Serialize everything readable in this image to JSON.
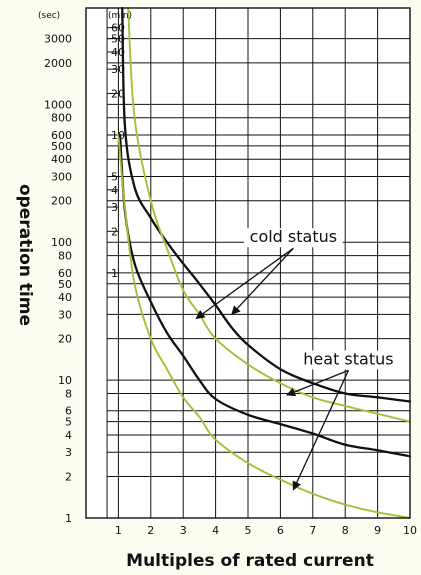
{
  "chart_data": {
    "type": "line",
    "title": "",
    "xlabel": "Multiples of rated current",
    "ylabel": "operation time",
    "yscale": "log",
    "ylim_sec": [
      1,
      5000
    ],
    "xlim": [
      0,
      10
    ],
    "x_ticks": [
      "1",
      "2",
      "3",
      "4",
      "5",
      "6",
      "7",
      "8",
      "9",
      "10"
    ],
    "y_unit_sec": "(sec)",
    "y_unit_min": "(min)",
    "y_ticks_sec": [
      {
        "label": "3000",
        "v": 3000
      },
      {
        "label": "2000",
        "v": 2000
      },
      {
        "label": "1000",
        "v": 1000
      },
      {
        "label": "800",
        "v": 800
      },
      {
        "label": "600",
        "v": 600
      },
      {
        "label": "500",
        "v": 500
      },
      {
        "label": "400",
        "v": 400
      },
      {
        "label": "300",
        "v": 300
      },
      {
        "label": "200",
        "v": 200
      },
      {
        "label": "100",
        "v": 100
      },
      {
        "label": "80",
        "v": 80
      },
      {
        "label": "60",
        "v": 60
      },
      {
        "label": "50",
        "v": 50
      },
      {
        "label": "40",
        "v": 40
      },
      {
        "label": "30",
        "v": 30
      },
      {
        "label": "20",
        "v": 20
      },
      {
        "label": "10",
        "v": 10
      },
      {
        "label": "8",
        "v": 8
      },
      {
        "label": "6",
        "v": 6
      },
      {
        "label": "5",
        "v": 5
      },
      {
        "label": "4",
        "v": 4
      },
      {
        "label": "3",
        "v": 3
      },
      {
        "label": "2",
        "v": 2
      },
      {
        "label": "1",
        "v": 1
      }
    ],
    "y_ticks_min": [
      {
        "label": "60",
        "v": 3600
      },
      {
        "label": "50",
        "v": 3000
      },
      {
        "label": "40",
        "v": 2400
      },
      {
        "label": "30",
        "v": 1800
      },
      {
        "label": "20",
        "v": 1200
      },
      {
        "label": "10",
        "v": 600
      },
      {
        "label": "5",
        "v": 300
      },
      {
        "label": "4",
        "v": 240
      },
      {
        "label": "3",
        "v": 180
      },
      {
        "label": "2",
        "v": 120
      },
      {
        "label": "1",
        "v": 60
      }
    ],
    "series": [
      {
        "group": "cold status",
        "color": "#111111",
        "style": "solid",
        "points": [
          [
            1.12,
            5000
          ],
          [
            1.2,
            700
          ],
          [
            1.5,
            250
          ],
          [
            2,
            150
          ],
          [
            2.5,
            100
          ],
          [
            3,
            70
          ],
          [
            3.5,
            50
          ],
          [
            4,
            35
          ],
          [
            4.5,
            24
          ],
          [
            5,
            18
          ],
          [
            6,
            12
          ],
          [
            7,
            9.5
          ],
          [
            8,
            8
          ],
          [
            9,
            7.5
          ],
          [
            10,
            7
          ]
        ]
      },
      {
        "group": "cold status",
        "color": "#111111",
        "style": "solid",
        "points": [
          [
            1.05,
            600
          ],
          [
            1.2,
            170
          ],
          [
            1.5,
            70
          ],
          [
            2,
            37
          ],
          [
            2.5,
            22
          ],
          [
            3,
            15
          ],
          [
            3.5,
            10
          ],
          [
            4,
            7.3
          ],
          [
            5,
            5.6
          ],
          [
            6,
            4.8
          ],
          [
            7,
            4.1
          ],
          [
            8,
            3.4
          ],
          [
            9,
            3.1
          ],
          [
            10,
            2.8
          ]
        ]
      },
      {
        "group": "heat status",
        "color": "#9dc23a",
        "style": "dotted",
        "points": [
          [
            1.3,
            5000
          ],
          [
            1.5,
            800
          ],
          [
            2,
            200
          ],
          [
            2.5,
            90
          ],
          [
            3,
            45
          ],
          [
            3.5,
            30
          ],
          [
            4,
            20
          ],
          [
            5,
            13
          ],
          [
            6,
            9.5
          ],
          [
            7,
            7.5
          ],
          [
            8,
            6.5
          ],
          [
            9,
            5.7
          ],
          [
            10,
            5
          ]
        ]
      },
      {
        "group": "heat status",
        "color": "#9dc23a",
        "style": "dotted",
        "points": [
          [
            1,
            600
          ],
          [
            1.2,
            180
          ],
          [
            1.5,
            50
          ],
          [
            2,
            20
          ],
          [
            2.5,
            12
          ],
          [
            3,
            7.5
          ],
          [
            3.5,
            5.4
          ],
          [
            4,
            3.7
          ],
          [
            5,
            2.5
          ],
          [
            6,
            1.9
          ],
          [
            7,
            1.5
          ],
          [
            8,
            1.25
          ],
          [
            9,
            1.1
          ],
          [
            10,
            1
          ]
        ]
      }
    ],
    "annotations": [
      {
        "text": "cold status",
        "x": 6.4,
        "y": 100,
        "arrows": [
          [
            3.4,
            28
          ],
          [
            4.5,
            30
          ]
        ]
      },
      {
        "text": "heat status",
        "x": 8.1,
        "y": 13,
        "arrows": [
          [
            6.2,
            7.8
          ],
          [
            6.4,
            1.6
          ]
        ]
      }
    ],
    "grid": true,
    "legend": "none"
  }
}
